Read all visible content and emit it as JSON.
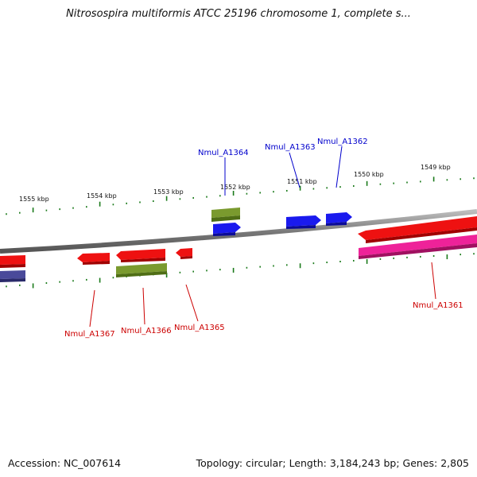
{
  "title": "Nitrosospira multiformis ATCC 25196 chromosome 1, complete s...",
  "footer": {
    "accession": "Accession: NC_007614",
    "summary": "Topology: circular; Length: 3,184,243 bp; Genes: 2,805"
  },
  "scale": {
    "labels": [
      "1555 kbp",
      "1554 kbp",
      "1553 kbp",
      "1552 kbp",
      "1551 kbp",
      "1550 kbp",
      "1549 kbp"
    ]
  },
  "genes": {
    "labels": [
      "Nmul_A1364",
      "Nmul_A1363",
      "Nmul_A1362",
      "Nmul_A1367",
      "Nmul_A1366",
      "Nmul_A1365",
      "Nmul_A1361"
    ]
  },
  "colors": {
    "forward_label": "#0000cc",
    "reverse_label": "#cc0000",
    "cds_red": "#ee1111",
    "cds_blue": "#1111ee",
    "rna_green": "#6b8e23",
    "pink": "#ee2299",
    "purple": "#3c3c8c",
    "ticks": "#1a7a1a",
    "backbone": "#888888"
  }
}
